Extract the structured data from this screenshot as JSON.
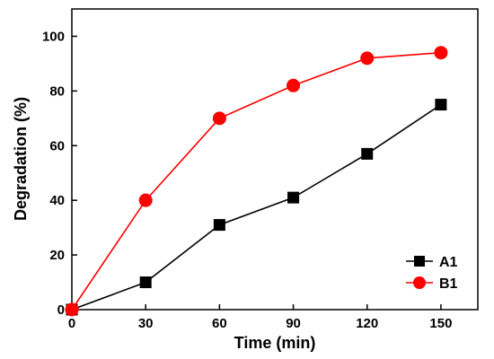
{
  "chart_data": {
    "type": "line",
    "xlabel": "Time (min)",
    "ylabel": "Degradation (%)",
    "xlim": [
      0,
      165
    ],
    "ylim": [
      0,
      110
    ],
    "xticks": [
      0,
      30,
      60,
      90,
      120,
      150
    ],
    "yticks": [
      0,
      20,
      40,
      60,
      80,
      100
    ],
    "legend_position": "bottom-right",
    "grid": false,
    "series": [
      {
        "name": "A1",
        "color": "#000000",
        "marker": "square",
        "x": [
          0,
          30,
          60,
          90,
          120,
          150
        ],
        "y": [
          0,
          10,
          31,
          41,
          57,
          75
        ]
      },
      {
        "name": "B1",
        "color": "#ff0000",
        "marker": "circle",
        "x": [
          0,
          30,
          60,
          90,
          120,
          150
        ],
        "y": [
          0,
          40,
          70,
          82,
          92,
          94
        ]
      }
    ]
  }
}
